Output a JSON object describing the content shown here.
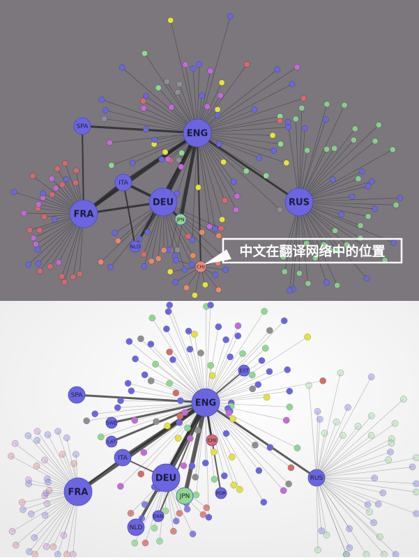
{
  "callout": {
    "text": "中文在翻译网络中的位置"
  },
  "colors": {
    "top_background": "#7b777d",
    "bottom_background": "#f4f4f4",
    "node_blue": "#6b66e0",
    "node_green": "#8fd98f",
    "node_red": "#d96a6a",
    "node_yellow": "#e6e23a",
    "node_magenta": "#c46bd8",
    "node_gray": "#8f8f8f",
    "node_salmon": "#ec8a6a",
    "edge": "#2a2a2a"
  },
  "top_panel": {
    "nodes": [
      {
        "label": "ENG",
        "size": "large"
      },
      {
        "label": "FRA",
        "size": "large"
      },
      {
        "label": "DEU",
        "size": "large"
      },
      {
        "label": "RUS",
        "size": "large"
      },
      {
        "label": "SPA",
        "size": "medium"
      },
      {
        "label": "ITA",
        "size": "medium"
      },
      {
        "label": "JPN",
        "size": "small"
      },
      {
        "label": "NLD",
        "size": "small"
      },
      {
        "label": "CHI",
        "size": "small"
      }
    ]
  },
  "bottom_panel": {
    "nodes": [
      {
        "label": "ENG",
        "size": "large"
      },
      {
        "label": "FRA",
        "size": "large"
      },
      {
        "label": "DEU",
        "size": "large"
      },
      {
        "label": "ITA",
        "size": "medium"
      },
      {
        "label": "RUS",
        "size": "medium"
      },
      {
        "label": "SPA",
        "size": "medium"
      },
      {
        "label": "JPN",
        "size": "medium"
      },
      {
        "label": "NLD",
        "size": "medium"
      },
      {
        "label": "LAT",
        "size": "small"
      },
      {
        "label": "SWE",
        "size": "small"
      },
      {
        "label": "CHI",
        "size": "small"
      },
      {
        "label": "POR",
        "size": "small"
      },
      {
        "label": "DAN",
        "size": "small"
      },
      {
        "label": "EST",
        "size": "small"
      }
    ]
  }
}
